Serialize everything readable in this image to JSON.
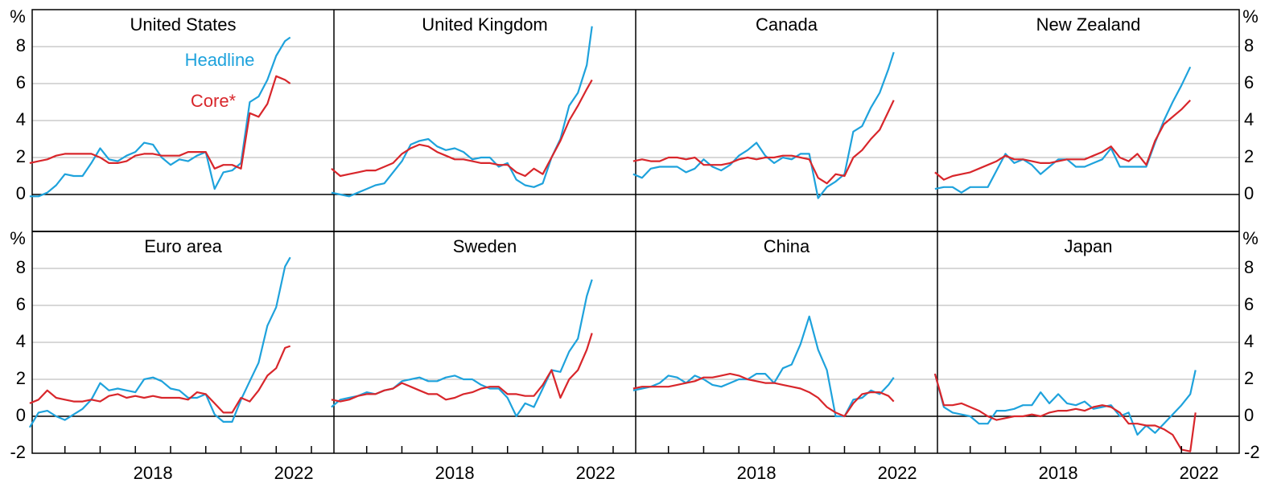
{
  "chart_data": [
    {
      "type": "line",
      "title": "United States",
      "legend": true,
      "ylabel": "%",
      "yaxis": "left",
      "x": [
        2015,
        2015.25,
        2015.5,
        2015.75,
        2016,
        2016.25,
        2016.5,
        2016.75,
        2017,
        2017.25,
        2017.5,
        2017.75,
        2018,
        2018.25,
        2018.5,
        2018.75,
        2019,
        2019.25,
        2019.5,
        2019.75,
        2020,
        2020.25,
        2020.5,
        2020.75,
        2021,
        2021.25,
        2021.5,
        2021.75,
        2022,
        2022.25,
        2022.4
      ],
      "series": [
        {
          "name": "Headline",
          "color": "#1ea2dc",
          "values": [
            -0.1,
            -0.1,
            0.1,
            0.5,
            1.1,
            1.0,
            1.0,
            1.7,
            2.5,
            1.9,
            1.8,
            2.1,
            2.3,
            2.8,
            2.7,
            2.0,
            1.6,
            1.9,
            1.8,
            2.1,
            2.3,
            0.3,
            1.2,
            1.3,
            1.7,
            5.0,
            5.3,
            6.2,
            7.5,
            8.3,
            8.5
          ]
        },
        {
          "name": "Core*",
          "color": "#d8262b",
          "values": [
            1.7,
            1.8,
            1.9,
            2.1,
            2.2,
            2.2,
            2.2,
            2.2,
            2.0,
            1.7,
            1.7,
            1.8,
            2.1,
            2.2,
            2.2,
            2.1,
            2.1,
            2.1,
            2.3,
            2.3,
            2.3,
            1.4,
            1.6,
            1.6,
            1.4,
            4.4,
            4.2,
            4.9,
            6.4,
            6.2,
            6.0
          ]
        }
      ],
      "xlim": [
        2015.07,
        2023.64
      ],
      "ylim": [
        -2,
        10
      ],
      "yticks": [
        0,
        2,
        4,
        6,
        8
      ]
    },
    {
      "type": "line",
      "title": "United Kingdom",
      "x": [
        2015,
        2015.25,
        2015.5,
        2015.75,
        2016,
        2016.25,
        2016.5,
        2016.75,
        2017,
        2017.25,
        2017.5,
        2017.75,
        2018,
        2018.25,
        2018.5,
        2018.75,
        2019,
        2019.25,
        2019.5,
        2019.75,
        2020,
        2020.25,
        2020.5,
        2020.75,
        2021,
        2021.25,
        2021.5,
        2021.75,
        2022,
        2022.25,
        2022.4
      ],
      "series": [
        {
          "name": "Headline",
          "color": "#1ea2dc",
          "values": [
            0.1,
            0.0,
            -0.1,
            0.1,
            0.3,
            0.5,
            0.6,
            1.2,
            1.8,
            2.7,
            2.9,
            3.0,
            2.6,
            2.4,
            2.5,
            2.3,
            1.9,
            2.0,
            2.0,
            1.5,
            1.7,
            0.8,
            0.5,
            0.4,
            0.6,
            2.0,
            3.0,
            4.8,
            5.5,
            7.0,
            9.1
          ]
        },
        {
          "name": "Core*",
          "color": "#d8262b",
          "values": [
            1.4,
            1.0,
            1.1,
            1.2,
            1.3,
            1.3,
            1.5,
            1.7,
            2.2,
            2.5,
            2.7,
            2.6,
            2.3,
            2.1,
            1.9,
            1.9,
            1.8,
            1.7,
            1.7,
            1.6,
            1.6,
            1.2,
            1.0,
            1.4,
            1.1,
            2.0,
            2.9,
            4.0,
            4.8,
            5.7,
            6.2
          ]
        }
      ],
      "xlim": [
        2015.07,
        2023.64
      ],
      "ylim": [
        -2,
        10
      ],
      "yticks": [
        0,
        2,
        4,
        6,
        8
      ]
    },
    {
      "type": "line",
      "title": "Canada",
      "x": [
        2015,
        2015.25,
        2015.5,
        2015.75,
        2016,
        2016.25,
        2016.5,
        2016.75,
        2017,
        2017.25,
        2017.5,
        2017.75,
        2018,
        2018.25,
        2018.5,
        2018.75,
        2019,
        2019.25,
        2019.5,
        2019.75,
        2020,
        2020.25,
        2020.5,
        2020.75,
        2021,
        2021.25,
        2021.5,
        2021.75,
        2022,
        2022.25,
        2022.4
      ],
      "series": [
        {
          "name": "Headline",
          "color": "#1ea2dc",
          "values": [
            1.1,
            0.9,
            1.4,
            1.5,
            1.5,
            1.5,
            1.2,
            1.4,
            1.9,
            1.5,
            1.3,
            1.6,
            2.1,
            2.4,
            2.8,
            2.1,
            1.7,
            2.0,
            1.9,
            2.2,
            2.2,
            -0.2,
            0.4,
            0.7,
            1.1,
            3.4,
            3.7,
            4.7,
            5.5,
            6.8,
            7.7
          ]
        },
        {
          "name": "Core*",
          "color": "#d8262b",
          "values": [
            1.8,
            1.9,
            1.8,
            1.8,
            2.0,
            2.0,
            1.9,
            2.0,
            1.6,
            1.6,
            1.6,
            1.7,
            1.9,
            2.0,
            1.9,
            2.0,
            2.0,
            2.1,
            2.1,
            2.0,
            1.9,
            0.9,
            0.6,
            1.1,
            1.0,
            2.0,
            2.4,
            3.0,
            3.5,
            4.5,
            5.1
          ]
        }
      ],
      "xlim": [
        2015.07,
        2023.64
      ],
      "ylim": [
        -2,
        10
      ],
      "yticks": [
        0,
        2,
        4,
        6,
        8
      ]
    },
    {
      "type": "line",
      "title": "New Zealand",
      "ylabel": "%",
      "yaxis": "right",
      "x": [
        2015,
        2015.25,
        2015.5,
        2015.75,
        2016,
        2016.25,
        2016.5,
        2016.75,
        2017,
        2017.25,
        2017.5,
        2017.75,
        2018,
        2018.25,
        2018.5,
        2018.75,
        2019,
        2019.25,
        2019.5,
        2019.75,
        2020,
        2020.25,
        2020.5,
        2020.75,
        2021,
        2021.25,
        2021.5,
        2021.75,
        2022,
        2022.25,
        2022.4
      ],
      "series": [
        {
          "name": "Headline",
          "color": "#1ea2dc",
          "values": [
            0.3,
            0.4,
            0.4,
            0.1,
            0.4,
            0.4,
            0.4,
            1.3,
            2.2,
            1.7,
            1.9,
            1.6,
            1.1,
            1.5,
            1.9,
            1.9,
            1.5,
            1.5,
            1.7,
            1.9,
            2.5,
            1.5,
            1.5,
            1.5,
            1.5,
            2.8,
            4.0,
            5.0,
            5.9,
            6.9,
            null
          ]
        },
        {
          "name": "Core*",
          "color": "#d8262b",
          "values": [
            1.2,
            0.8,
            1.0,
            1.1,
            1.2,
            1.4,
            1.6,
            1.8,
            2.1,
            1.9,
            1.9,
            1.8,
            1.7,
            1.7,
            1.8,
            1.9,
            1.9,
            1.9,
            2.1,
            2.3,
            2.6,
            2.0,
            1.8,
            2.2,
            1.6,
            2.9,
            3.8,
            4.2,
            4.6,
            5.1,
            null
          ]
        }
      ],
      "xlim": [
        2015.07,
        2023.64
      ],
      "ylim": [
        -2,
        10
      ],
      "yticks": [
        0,
        2,
        4,
        6,
        8
      ]
    },
    {
      "type": "line",
      "title": "Euro area",
      "ylabel": "%",
      "yaxis": "left",
      "x": [
        2015,
        2015.25,
        2015.5,
        2015.75,
        2016,
        2016.25,
        2016.5,
        2016.75,
        2017,
        2017.25,
        2017.5,
        2017.75,
        2018,
        2018.25,
        2018.5,
        2018.75,
        2019,
        2019.25,
        2019.5,
        2019.75,
        2020,
        2020.25,
        2020.5,
        2020.75,
        2021,
        2021.25,
        2021.5,
        2021.75,
        2022,
        2022.25,
        2022.4
      ],
      "series": [
        {
          "name": "Headline",
          "color": "#1ea2dc",
          "values": [
            -0.6,
            0.2,
            0.3,
            0.0,
            -0.2,
            0.1,
            0.4,
            0.9,
            1.8,
            1.4,
            1.5,
            1.4,
            1.3,
            2.0,
            2.1,
            1.9,
            1.5,
            1.4,
            1.0,
            1.0,
            1.2,
            0.1,
            -0.3,
            -0.3,
            0.9,
            1.9,
            2.9,
            4.9,
            5.9,
            8.1,
            8.6
          ]
        },
        {
          "name": "Core*",
          "color": "#d8262b",
          "values": [
            0.7,
            0.9,
            1.4,
            1.0,
            0.9,
            0.8,
            0.8,
            0.9,
            0.8,
            1.1,
            1.2,
            1.0,
            1.1,
            1.0,
            1.1,
            1.0,
            1.0,
            1.0,
            0.9,
            1.3,
            1.2,
            0.7,
            0.2,
            0.2,
            1.0,
            0.8,
            1.4,
            2.2,
            2.6,
            3.7,
            3.8
          ]
        }
      ],
      "xlim": [
        2015.07,
        2023.64
      ],
      "ylim": [
        -2,
        10
      ],
      "yticks": [
        -2,
        0,
        2,
        4,
        6,
        8
      ],
      "xticks": [
        2016,
        2017,
        2018,
        2019,
        2020,
        2021,
        2022,
        2023
      ],
      "xlabels": [
        2018,
        2022
      ]
    },
    {
      "type": "line",
      "title": "Sweden",
      "x": [
        2015,
        2015.25,
        2015.5,
        2015.75,
        2016,
        2016.25,
        2016.5,
        2016.75,
        2017,
        2017.25,
        2017.5,
        2017.75,
        2018,
        2018.25,
        2018.5,
        2018.75,
        2019,
        2019.25,
        2019.5,
        2019.75,
        2020,
        2020.25,
        2020.5,
        2020.75,
        2021,
        2021.25,
        2021.5,
        2021.75,
        2022,
        2022.25,
        2022.4
      ],
      "series": [
        {
          "name": "Headline",
          "color": "#1ea2dc",
          "values": [
            0.5,
            0.9,
            1.0,
            1.1,
            1.3,
            1.2,
            1.4,
            1.5,
            1.9,
            2.0,
            2.1,
            1.9,
            1.9,
            2.1,
            2.2,
            2.0,
            2.0,
            1.7,
            1.5,
            1.5,
            1.0,
            0.0,
            0.7,
            0.5,
            1.5,
            2.5,
            2.4,
            3.5,
            4.2,
            6.5,
            7.4
          ]
        },
        {
          "name": "Core*",
          "color": "#d8262b",
          "values": [
            0.9,
            0.8,
            0.9,
            1.1,
            1.2,
            1.2,
            1.4,
            1.5,
            1.8,
            1.6,
            1.4,
            1.2,
            1.2,
            0.9,
            1.0,
            1.2,
            1.3,
            1.5,
            1.6,
            1.6,
            1.2,
            1.2,
            1.1,
            1.1,
            1.7,
            2.5,
            1.0,
            2.0,
            2.5,
            3.6,
            4.5
          ]
        }
      ],
      "xlim": [
        2015.07,
        2023.64
      ],
      "ylim": [
        -2,
        10
      ],
      "yticks": [
        -2,
        0,
        2,
        4,
        6,
        8
      ],
      "xticks": [
        2016,
        2017,
        2018,
        2019,
        2020,
        2021,
        2022,
        2023
      ],
      "xlabels": [
        2018,
        2022
      ]
    },
    {
      "type": "line",
      "title": "China",
      "x": [
        2015,
        2015.25,
        2015.5,
        2015.75,
        2016,
        2016.25,
        2016.5,
        2016.75,
        2017,
        2017.25,
        2017.5,
        2017.75,
        2018,
        2018.25,
        2018.5,
        2018.75,
        2019,
        2019.25,
        2019.5,
        2019.75,
        2020,
        2020.25,
        2020.5,
        2020.75,
        2021,
        2021.25,
        2021.5,
        2021.75,
        2022,
        2022.25,
        2022.4
      ],
      "series": [
        {
          "name": "Headline",
          "color": "#1ea2dc",
          "values": [
            1.4,
            1.5,
            1.6,
            1.8,
            2.2,
            2.1,
            1.8,
            2.2,
            2.0,
            1.7,
            1.6,
            1.8,
            2.0,
            2.0,
            2.3,
            2.3,
            1.8,
            2.6,
            2.8,
            3.9,
            5.4,
            3.6,
            2.5,
            0.0,
            0.0,
            0.9,
            1.0,
            1.4,
            1.2,
            1.7,
            2.1
          ]
        },
        {
          "name": "Core*",
          "color": "#d8262b",
          "values": [
            1.5,
            1.6,
            1.6,
            1.6,
            1.6,
            1.7,
            1.8,
            1.9,
            2.1,
            2.1,
            2.2,
            2.3,
            2.2,
            2.0,
            1.9,
            1.8,
            1.8,
            1.7,
            1.6,
            1.5,
            1.3,
            1.0,
            0.5,
            0.2,
            0.0,
            0.7,
            1.2,
            1.3,
            1.3,
            1.1,
            0.8
          ]
        }
      ],
      "xlim": [
        2015.07,
        2023.64
      ],
      "ylim": [
        -2,
        10
      ],
      "yticks": [
        -2,
        0,
        2,
        4,
        6,
        8
      ],
      "xticks": [
        2016,
        2017,
        2018,
        2019,
        2020,
        2021,
        2022,
        2023
      ],
      "xlabels": [
        2018,
        2022
      ]
    },
    {
      "type": "line",
      "title": "Japan",
      "ylabel": "%",
      "yaxis": "right",
      "x": [
        2015,
        2015.25,
        2015.5,
        2015.75,
        2016,
        2016.25,
        2016.5,
        2016.75,
        2017,
        2017.25,
        2017.5,
        2017.75,
        2018,
        2018.25,
        2018.5,
        2018.75,
        2019,
        2019.25,
        2019.5,
        2019.75,
        2020,
        2020.25,
        2020.5,
        2020.75,
        2021,
        2021.25,
        2021.5,
        2021.75,
        2022,
        2022.25,
        2022.4
      ],
      "series": [
        {
          "name": "Headline",
          "color": "#1ea2dc",
          "values": [
            2.3,
            0.5,
            0.2,
            0.1,
            0.0,
            -0.4,
            -0.4,
            0.3,
            0.3,
            0.4,
            0.6,
            0.6,
            1.3,
            0.7,
            1.2,
            0.7,
            0.6,
            0.8,
            0.4,
            0.5,
            0.6,
            0.0,
            0.2,
            -1.0,
            -0.5,
            -0.9,
            -0.4,
            0.1,
            0.6,
            1.2,
            2.5
          ]
        },
        {
          "name": "Core*",
          "color": "#d8262b",
          "values": [
            2.3,
            0.6,
            0.6,
            0.7,
            0.5,
            0.3,
            0.0,
            -0.2,
            -0.1,
            0.0,
            0.0,
            0.1,
            0.0,
            0.2,
            0.3,
            0.3,
            0.4,
            0.3,
            0.5,
            0.6,
            0.5,
            0.2,
            -0.4,
            -0.4,
            -0.5,
            -0.5,
            -0.7,
            -1.0,
            -1.8,
            -1.9,
            0.2
          ]
        }
      ],
      "xlim": [
        2015.07,
        2023.64
      ],
      "ylim": [
        -2,
        10
      ],
      "yticks": [
        -2,
        0,
        2,
        4,
        6,
        8
      ],
      "xticks": [
        2016,
        2017,
        2018,
        2019,
        2020,
        2021,
        2022,
        2023
      ],
      "xlabels": [
        2018,
        2022
      ]
    }
  ]
}
